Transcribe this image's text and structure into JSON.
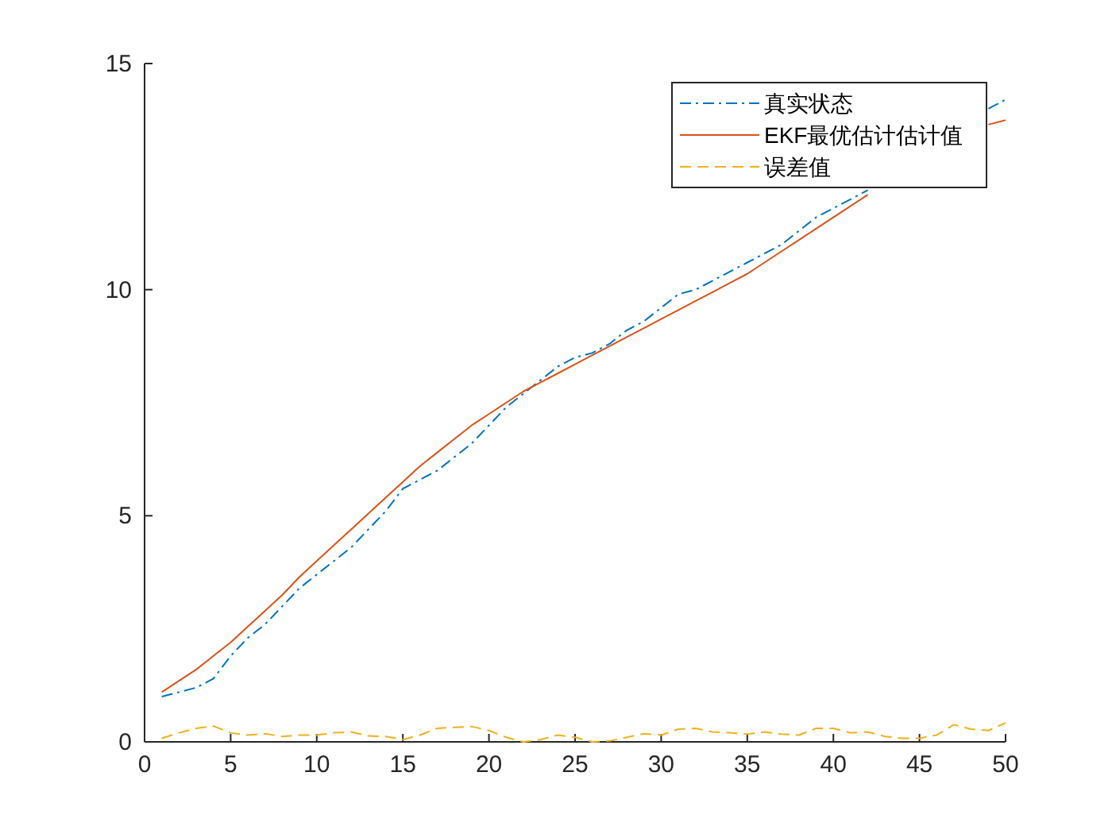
{
  "chart_data": {
    "type": "line",
    "x": [
      1,
      2,
      3,
      4,
      5,
      6,
      7,
      8,
      9,
      10,
      11,
      12,
      13,
      14,
      15,
      16,
      17,
      18,
      19,
      20,
      21,
      22,
      23,
      24,
      25,
      26,
      27,
      28,
      29,
      30,
      31,
      32,
      33,
      34,
      35,
      36,
      37,
      38,
      39,
      40,
      41,
      42,
      43,
      44,
      45,
      46,
      47,
      48,
      49,
      50
    ],
    "series": [
      {
        "name": "真实状态",
        "color": "#0072bd",
        "line_style": "dashdot",
        "values": [
          1.0,
          1.1,
          1.2,
          1.4,
          1.9,
          2.3,
          2.6,
          3.0,
          3.4,
          3.7,
          4.0,
          4.3,
          4.7,
          5.1,
          5.6,
          5.8,
          6.0,
          6.3,
          6.6,
          7.0,
          7.4,
          7.7,
          8.0,
          8.3,
          8.5,
          8.6,
          8.8,
          9.1,
          9.3,
          9.6,
          9.9,
          10.0,
          10.2,
          10.4,
          10.6,
          10.8,
          11.0,
          11.3,
          11.6,
          11.8,
          12.0,
          12.2,
          null,
          null,
          null,
          null,
          null,
          null,
          14.0,
          14.2
        ]
      },
      {
        "name": "EKF最优估计估计值",
        "color": "#d95319",
        "line_style": "solid",
        "values": [
          1.1,
          1.35,
          1.6,
          1.9,
          2.2,
          2.55,
          2.9,
          3.25,
          3.65,
          4.0,
          4.35,
          4.7,
          5.05,
          5.4,
          5.75,
          6.1,
          6.4,
          6.7,
          7.0,
          7.25,
          7.5,
          7.75,
          7.95,
          8.15,
          8.35,
          8.55,
          8.75,
          8.95,
          9.15,
          9.35,
          9.55,
          9.75,
          9.95,
          10.15,
          10.35,
          10.6,
          10.85,
          11.1,
          11.35,
          11.6,
          11.85,
          12.1,
          null,
          null,
          null,
          null,
          null,
          null,
          13.65,
          13.75
        ]
      },
      {
        "name": "误差值",
        "color": "#edb120",
        "line_style": "dashed",
        "values": [
          0.08,
          0.2,
          0.3,
          0.35,
          0.2,
          0.15,
          0.18,
          0.12,
          0.15,
          0.15,
          0.2,
          0.22,
          0.13,
          0.12,
          0.05,
          0.15,
          0.3,
          0.32,
          0.34,
          0.25,
          0.1,
          0.0,
          0.05,
          0.15,
          0.1,
          0.0,
          0.02,
          0.1,
          0.18,
          0.15,
          0.28,
          0.3,
          0.22,
          0.2,
          0.17,
          0.22,
          0.17,
          0.15,
          0.3,
          0.3,
          0.2,
          0.22,
          0.12,
          0.08,
          0.08,
          0.15,
          0.38,
          0.28,
          0.25,
          0.42
        ]
      }
    ],
    "xlim": [
      0,
      50
    ],
    "xticks": [
      0,
      5,
      10,
      15,
      20,
      25,
      30,
      35,
      40,
      45,
      50
    ],
    "ylim": [
      0,
      15
    ],
    "yticks": [
      0,
      5,
      10,
      15
    ],
    "legend": "top right",
    "marker": "none"
  }
}
